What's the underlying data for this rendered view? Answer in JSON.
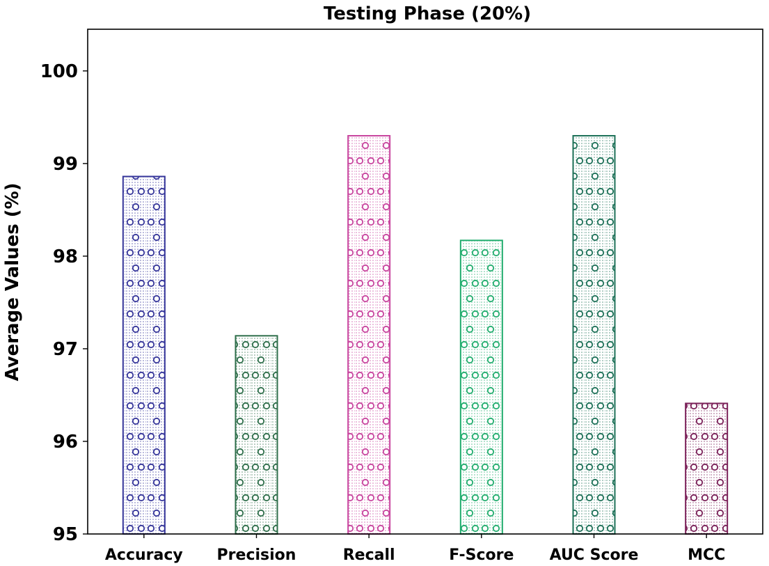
{
  "chart_data": {
    "type": "bar",
    "title": "Testing Phase (20%)",
    "xlabel": "",
    "ylabel": "Average Values (%)",
    "ylim": [
      95,
      100.45
    ],
    "yticks": [
      95,
      96,
      97,
      98,
      99,
      100
    ],
    "categories": [
      "Accuracy",
      "Precision",
      "Recall",
      "F-Score",
      "AUC Score",
      "MCC"
    ],
    "values": [
      98.86,
      97.14,
      99.3,
      98.17,
      99.3,
      96.41
    ],
    "colors": [
      "#35359a",
      "#2e6e4a",
      "#c8449e",
      "#22ad6e",
      "#1c7057",
      "#7a2058"
    ],
    "hatch": "dotted-ring",
    "grid": false,
    "legend": false
  }
}
